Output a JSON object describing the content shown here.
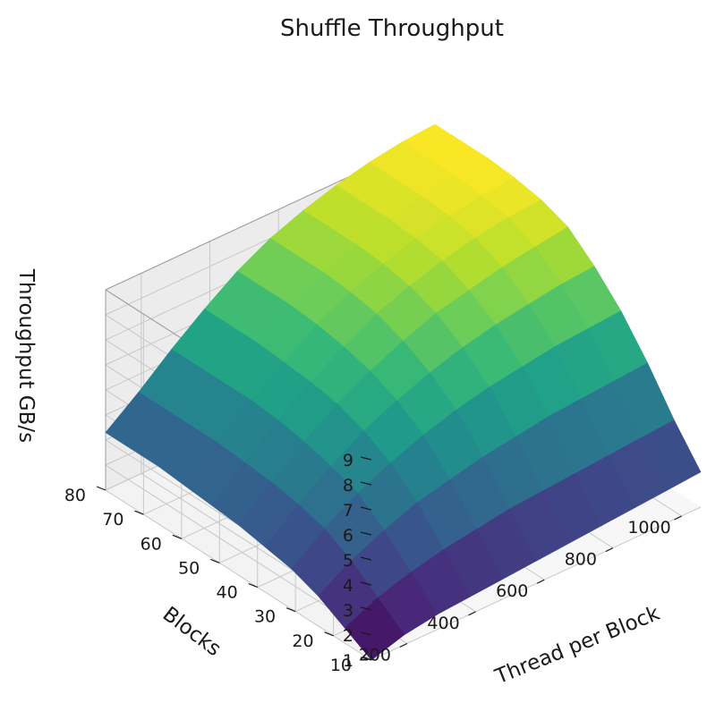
{
  "chart_data": {
    "type": "surface3d",
    "title": "Shuffle Throughput",
    "xlabel": "Thread per Block",
    "ylabel": "Blocks",
    "zlabel": "Throughput GB/s",
    "x": [
      96,
      192,
      288,
      384,
      480,
      576,
      672,
      768,
      864,
      960,
      1056
    ],
    "y": [
      10,
      17,
      24,
      31,
      38,
      45,
      52,
      59,
      66,
      73,
      80
    ],
    "x_ticks": [
      200,
      400,
      600,
      800,
      1000
    ],
    "y_ticks": [
      10,
      20,
      30,
      40,
      50,
      60,
      70,
      80
    ],
    "z_ticks": [
      1,
      2,
      3,
      4,
      5,
      6,
      7,
      8,
      9
    ],
    "xlim": [
      96,
      1056
    ],
    "ylim": [
      10,
      80
    ],
    "zlim": [
      1,
      9
    ],
    "z": [
      [
        1.0,
        1.4,
        1.6,
        1.7,
        1.8,
        1.9,
        2.0,
        2.1,
        2.2,
        2.3,
        2.4
      ],
      [
        1.6,
        2.2,
        2.6,
        2.9,
        3.1,
        3.3,
        3.4,
        3.5,
        3.6,
        3.7,
        3.8
      ],
      [
        2.2,
        3.0,
        3.6,
        4.1,
        4.4,
        4.7,
        4.9,
        5.1,
        5.2,
        5.3,
        5.4
      ],
      [
        2.6,
        3.6,
        4.4,
        5.0,
        5.5,
        5.9,
        6.2,
        6.4,
        6.6,
        6.7,
        6.8
      ],
      [
        2.8,
        3.9,
        4.8,
        5.6,
        6.2,
        6.7,
        7.1,
        7.4,
        7.6,
        7.8,
        7.9
      ],
      [
        3.0,
        4.1,
        5.1,
        6.0,
        6.7,
        7.3,
        7.8,
        8.1,
        8.4,
        8.6,
        8.8
      ],
      [
        3.1,
        4.2,
        5.3,
        6.2,
        7.0,
        7.7,
        8.2,
        8.6,
        8.9,
        9.1,
        9.2
      ],
      [
        3.2,
        4.3,
        5.4,
        6.3,
        7.2,
        7.9,
        8.4,
        8.8,
        9.1,
        9.3,
        9.4
      ],
      [
        3.3,
        4.3,
        5.4,
        6.4,
        7.3,
        8.0,
        8.5,
        8.9,
        9.2,
        9.4,
        9.5
      ],
      [
        3.3,
        4.3,
        5.4,
        6.4,
        7.3,
        8.0,
        8.5,
        8.9,
        9.2,
        9.4,
        9.5
      ],
      [
        3.3,
        4.3,
        5.4,
        6.4,
        7.3,
        8.0,
        8.5,
        8.9,
        9.2,
        9.4,
        9.5
      ]
    ],
    "colormap": "viridis",
    "grid": true,
    "legend": "none"
  }
}
